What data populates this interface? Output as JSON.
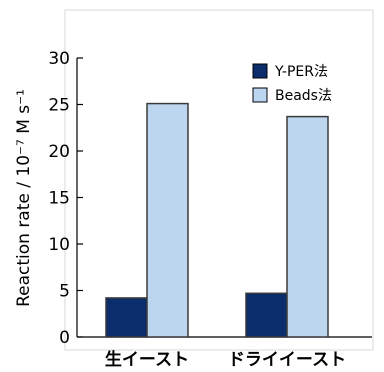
{
  "chart_data": {
    "type": "bar",
    "categories": [
      "生イースト",
      "ドライイースト"
    ],
    "series": [
      {
        "name": "Y-PER法",
        "values": [
          4.2,
          4.7
        ],
        "color": "#0b2d6b"
      },
      {
        "name": "Beads法",
        "values": [
          25.1,
          23.7
        ],
        "color": "#bcd6ef"
      }
    ],
    "ylabel": "Reaction rate / 10⁻⁷ M s⁻¹",
    "ylim": [
      0,
      30
    ],
    "yticks": [
      0,
      5,
      10,
      15,
      20,
      25,
      30
    ],
    "grid": false,
    "legend": "top-right"
  }
}
